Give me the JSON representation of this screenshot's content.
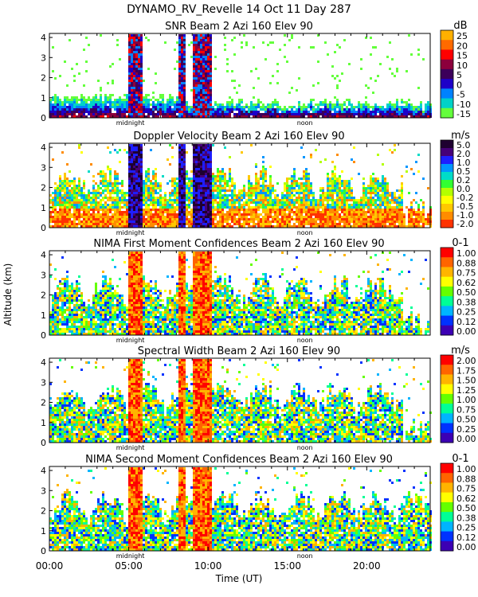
{
  "figure": {
    "title": "DYNAMO_RV_Revelle  14 Oct 11 Day 287",
    "ylabel": "Altitude (km)",
    "xlabel": "Time (UT)",
    "midnight_label": "midnight",
    "noon_label": "noon",
    "x_ticks": [
      "00:00",
      "05:00",
      "10:00",
      "15:00",
      "20:00"
    ],
    "y_ticks": [
      "0",
      "1",
      "2",
      "3",
      "4"
    ]
  },
  "chart_data": [
    {
      "type": "heatmap",
      "title": "SNR Beam 2 Azi 160 Elev 90",
      "units": "dB",
      "colorbar_labels": [
        "25",
        "20",
        "15",
        "10",
        "5",
        "0",
        "-5",
        "-10",
        "-15"
      ],
      "colors": [
        "#ffb000",
        "#ff6a00",
        "#ff0000",
        "#8c003c",
        "#3c005a",
        "#1e00c8",
        "#0082ff",
        "#00d2c8",
        "#64ff3c"
      ],
      "xlim": [
        0,
        24
      ],
      "ylim": [
        0,
        4.2
      ],
      "xlabel": "Time (UT)",
      "ylabel": "Altitude (km)"
    },
    {
      "type": "heatmap",
      "title": "Doppler Velocity Beam 2 Azi 160 Elev 90",
      "units": "m/s",
      "colorbar_labels": [
        "5.0",
        "2.0",
        "1.0",
        "0.5",
        "0.2",
        "0.0",
        "-0.2",
        "-0.5",
        "-1.0",
        "-2.0"
      ],
      "colors": [
        "#1e0030",
        "#460078",
        "#1e1eff",
        "#0096ff",
        "#00dcc8",
        "#32ff32",
        "#b4ff00",
        "#ffff00",
        "#ffc800",
        "#ff8c00",
        "#ff3200"
      ],
      "xlim": [
        0,
        24
      ],
      "ylim": [
        0,
        4.2
      ],
      "xlabel": "Time (UT)",
      "ylabel": "Altitude (km)"
    },
    {
      "type": "heatmap",
      "title": "NIMA First Moment Confidences Beam 2 Azi 160 Elev 90",
      "units": "0-1",
      "colorbar_labels": [
        "1.00",
        "0.88",
        "0.75",
        "0.62",
        "0.50",
        "0.38",
        "0.25",
        "0.12",
        "0.00"
      ],
      "colors": [
        "#ff0000",
        "#ff6400",
        "#ffb400",
        "#ffff00",
        "#64ff00",
        "#00ff96",
        "#00b4ff",
        "#0032ff",
        "#3c00b4"
      ],
      "xlim": [
        0,
        24
      ],
      "ylim": [
        0,
        4.2
      ],
      "xlabel": "Time (UT)",
      "ylabel": "Altitude (km)"
    },
    {
      "type": "heatmap",
      "title": "Spectral Width Beam 2 Azi 160 Elev 90",
      "units": "m/s",
      "colorbar_labels": [
        "2.00",
        "1.75",
        "1.50",
        "1.25",
        "1.00",
        "0.75",
        "0.50",
        "0.25",
        "0.00"
      ],
      "colors": [
        "#ff0000",
        "#ff6400",
        "#ffb400",
        "#ffff00",
        "#64ff00",
        "#00ff96",
        "#00b4ff",
        "#0032ff",
        "#3c00b4"
      ],
      "xlim": [
        0,
        24
      ],
      "ylim": [
        0,
        4.2
      ],
      "xlabel": "Time (UT)",
      "ylabel": "Altitude (km)"
    },
    {
      "type": "heatmap",
      "title": "NIMA Second Moment Confidences Beam 2 Azi 160 Elev 90",
      "units": "0-1",
      "colorbar_labels": [
        "1.00",
        "0.88",
        "0.75",
        "0.62",
        "0.50",
        "0.38",
        "0.25",
        "0.12",
        "0.00"
      ],
      "colors": [
        "#ff0000",
        "#ff6400",
        "#ffb400",
        "#ffff00",
        "#64ff00",
        "#00ff96",
        "#00b4ff",
        "#0032ff",
        "#3c00b4"
      ],
      "xlim": [
        0,
        24
      ],
      "ylim": [
        0,
        4.2
      ],
      "xlabel": "Time (UT)",
      "ylabel": "Altitude (km)"
    }
  ]
}
